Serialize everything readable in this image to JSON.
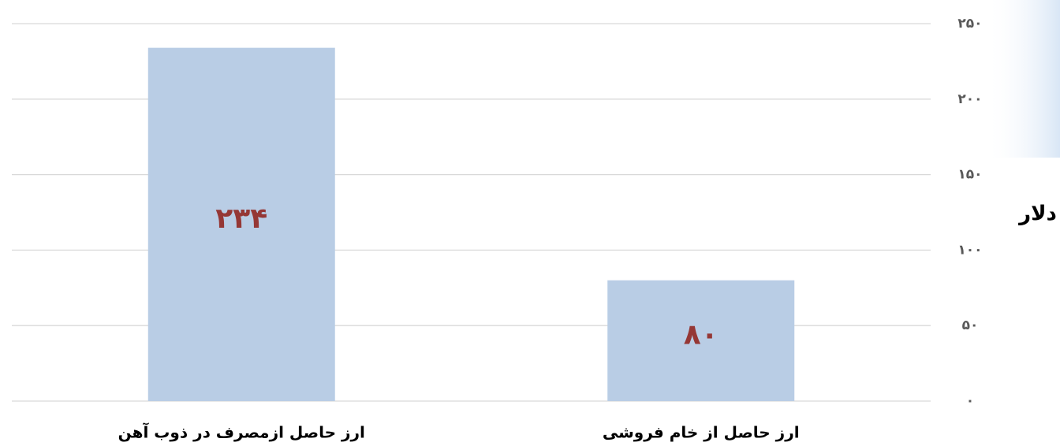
{
  "chart_data": {
    "type": "bar",
    "y_label": "دلار",
    "categories": [
      "ارز حاصل از خام فروشی",
      "ارز حاصل ازمصرف در ذوب آهن"
    ],
    "values": [
      80,
      234
    ],
    "value_labels": [
      "۸۰",
      "۲۳۴"
    ],
    "color": "#b9cde5",
    "ylim": [
      0,
      250
    ],
    "yticks": [
      {
        "value": 0,
        "label": "۰"
      },
      {
        "value": 50,
        "label": "۵۰"
      },
      {
        "value": 100,
        "label": "۱۰۰"
      },
      {
        "value": 150,
        "label": "۱۵۰"
      },
      {
        "value": 200,
        "label": "۲۰۰"
      },
      {
        "value": 250,
        "label": "۲۵۰"
      }
    ],
    "grid": true,
    "direction": "rtl"
  }
}
